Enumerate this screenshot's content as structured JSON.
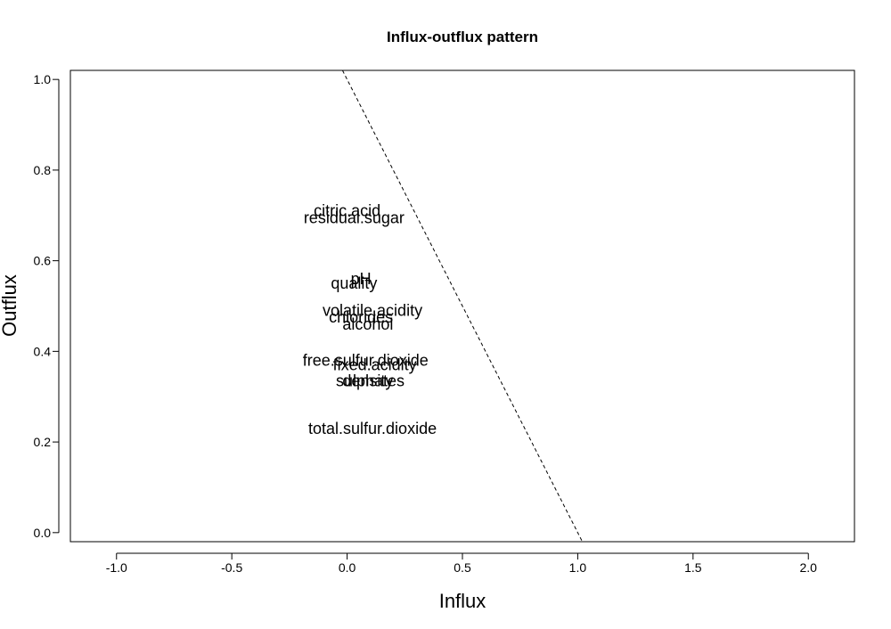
{
  "chart_data": {
    "type": "scatter",
    "title": "Influx-outflux pattern",
    "xlabel": "Influx",
    "ylabel": "Outflux",
    "xlim": [
      -1.2,
      2.2
    ],
    "ylim": [
      -0.02,
      1.02
    ],
    "x_ticks": [
      -1.0,
      -0.5,
      0.0,
      0.5,
      1.0,
      1.5,
      2.0
    ],
    "x_tick_labels": [
      "-1.0",
      "-0.5",
      "0.0",
      "0.5",
      "1.0",
      "1.5",
      "2.0"
    ],
    "y_ticks": [
      0.0,
      0.2,
      0.4,
      0.6,
      0.8,
      1.0
    ],
    "y_tick_labels": [
      "0.0",
      "0.2",
      "0.4",
      "0.6",
      "0.8",
      "1.0"
    ],
    "grid": false,
    "reference_line": {
      "style": "dashed",
      "from": [
        0.0,
        1.0
      ],
      "to": [
        1.0,
        0.0
      ]
    },
    "points": [
      {
        "label": "citric.acid",
        "x": 0.0,
        "y": 0.71
      },
      {
        "label": "residual.sugar",
        "x": 0.03,
        "y": 0.695
      },
      {
        "label": "pH",
        "x": 0.06,
        "y": 0.56
      },
      {
        "label": "quality",
        "x": 0.03,
        "y": 0.55
      },
      {
        "label": "volatile.acidity",
        "x": 0.11,
        "y": 0.49
      },
      {
        "label": "chlorides",
        "x": 0.06,
        "y": 0.475
      },
      {
        "label": "alcohol",
        "x": 0.09,
        "y": 0.46
      },
      {
        "label": "free.sulfur.dioxide",
        "x": 0.08,
        "y": 0.38
      },
      {
        "label": "fixed.acidity",
        "x": 0.12,
        "y": 0.37
      },
      {
        "label": "density",
        "x": 0.09,
        "y": 0.335
      },
      {
        "label": "sulphates",
        "x": 0.1,
        "y": 0.335
      },
      {
        "label": "total.sulfur.dioxide",
        "x": 0.11,
        "y": 0.23
      }
    ]
  }
}
